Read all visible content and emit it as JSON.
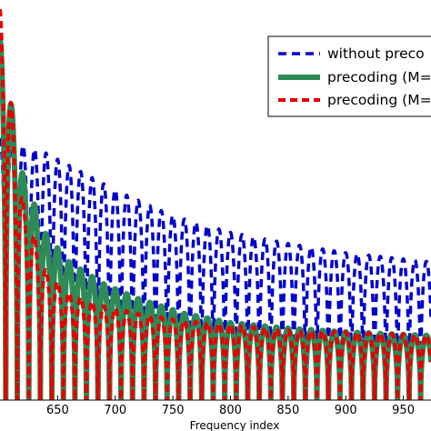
{
  "chart_data": {
    "type": "line",
    "title": "",
    "xlabel": "Frequency index",
    "ylabel": "",
    "xlim": [
      600,
      974
    ],
    "ylim": [
      -3.2,
      18.5
    ],
    "x_ticks": [
      650,
      700,
      750,
      800,
      850,
      900,
      950
    ],
    "x_tick_labels": [
      "650",
      "700",
      "750",
      "800",
      "850",
      "900",
      "950"
    ],
    "grid": false,
    "legend_position": "top-right",
    "notch_period": 10,
    "series": [
      {
        "name": "without preco",
        "color": "#0000cc",
        "line_style": "dashed",
        "envelope": {
          "x": [
            600,
            640,
            700,
            750,
            800,
            850,
            900,
            974
          ],
          "y": [
            11.0,
            10.2,
            8.2,
            6.8,
            5.9,
            5.3,
            4.8,
            4.3
          ]
        }
      },
      {
        "name": "precoding (M=",
        "color": "#2e8b57",
        "line_style": "solid",
        "envelope": {
          "x": [
            600,
            620,
            640,
            660,
            690,
            720,
            760,
            800,
            850,
            900,
            974
          ],
          "y": [
            16.5,
            9.0,
            5.8,
            4.3,
            3.1,
            2.3,
            1.5,
            1.0,
            0.7,
            0.5,
            0.3
          ]
        }
      },
      {
        "name": "precoding (M=",
        "color": "#e60000",
        "line_style": "dashed",
        "envelope": {
          "x": [
            600,
            620,
            640,
            660,
            690,
            720,
            760,
            800,
            850,
            900,
            974
          ],
          "y": [
            18.0,
            7.5,
            3.8,
            2.6,
            1.9,
            1.5,
            1.1,
            0.9,
            0.6,
            0.5,
            0.3
          ]
        }
      }
    ]
  }
}
